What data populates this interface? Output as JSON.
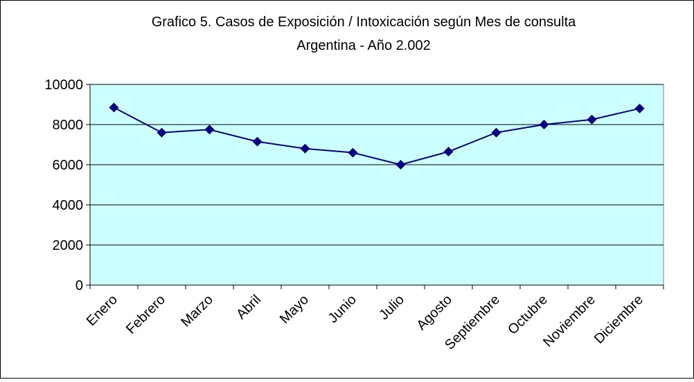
{
  "chart_data": {
    "type": "line",
    "title": "Grafico 5. Casos de Exposición / Intoxicación según Mes de consulta",
    "subtitle": "Argentina - Año 2.002",
    "categories": [
      "Enero",
      "Febrero",
      "Marzo",
      "Abril",
      "Mayo",
      "Junio",
      "Julio",
      "Agosto",
      "Septiembre",
      "Octubre",
      "Noviembre",
      "Diciembre"
    ],
    "series": [
      {
        "name": "Casos",
        "color": "#000080",
        "values": [
          8850,
          7600,
          7750,
          7150,
          6800,
          6600,
          6000,
          6650,
          7600,
          8000,
          8250,
          8800
        ]
      }
    ],
    "ylim": [
      0,
      10000
    ],
    "yticks": [
      0,
      2000,
      4000,
      6000,
      8000,
      10000
    ],
    "grid": true,
    "plot_background": "#ccffff"
  }
}
